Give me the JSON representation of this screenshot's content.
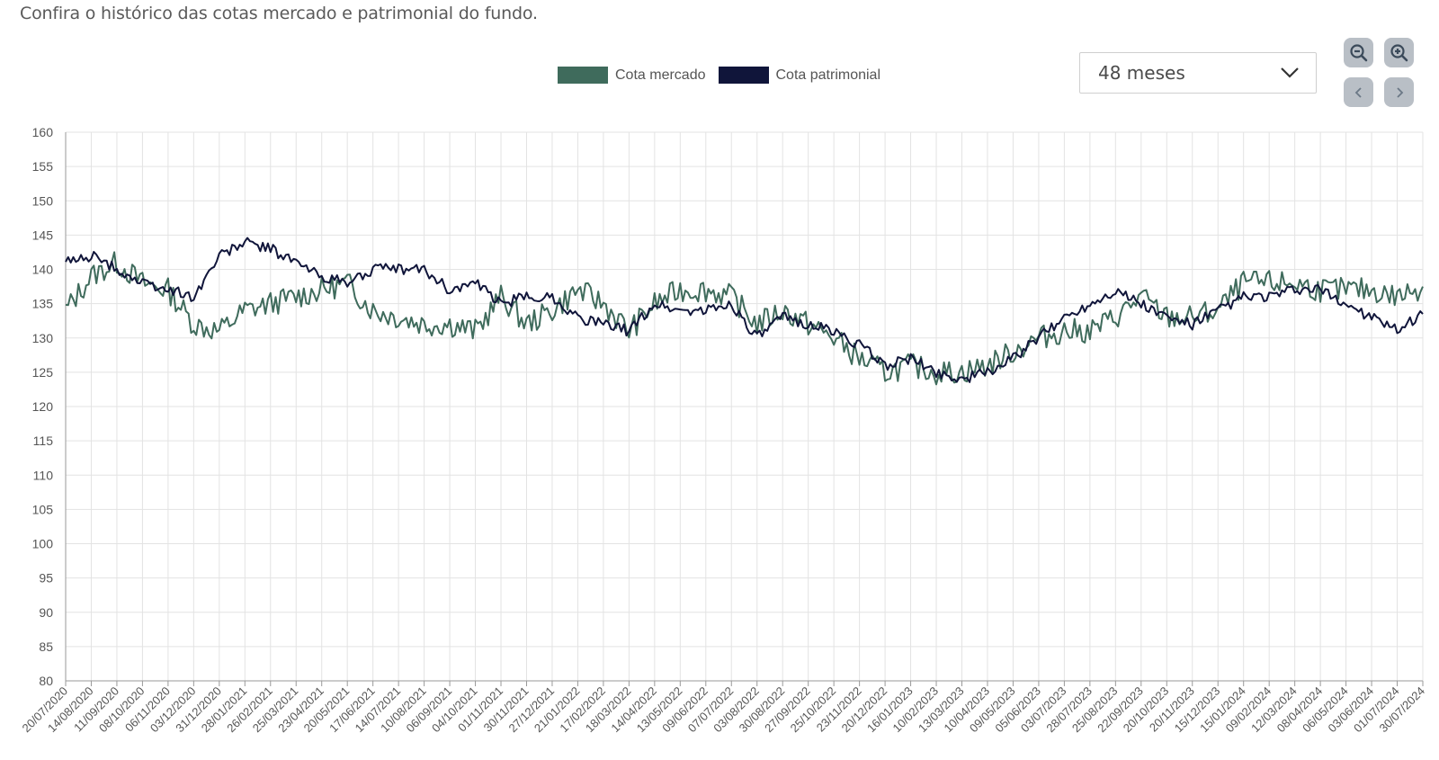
{
  "intro": "Confira o histórico das cotas mercado e patrimonial do fundo.",
  "period_select": {
    "value": "48 meses"
  },
  "controls": {
    "zoom_out_icon": "zoom-out-icon",
    "zoom_in_icon": "zoom-in-icon",
    "prev_icon": "chevron-left-icon",
    "next_icon": "chevron-right-icon"
  },
  "colors": {
    "mercado": "#3f6b5c",
    "patrimonial": "#10153a",
    "grid": "#e3e3e3",
    "button": "#b9bfc6"
  },
  "chart_data": {
    "type": "line",
    "title": "",
    "xlabel": "",
    "ylabel": "",
    "ylim": [
      80,
      160
    ],
    "y_ticks": [
      160,
      155,
      150,
      145,
      140,
      135,
      130,
      125,
      120,
      115,
      110,
      105,
      100,
      95,
      90,
      85,
      80
    ],
    "grid": true,
    "legend_position": "top-center",
    "x": [
      "20/07/2020",
      "14/08/2020",
      "11/09/2020",
      "08/10/2020",
      "06/11/2020",
      "03/12/2020",
      "31/12/2020",
      "28/01/2021",
      "26/02/2021",
      "25/03/2021",
      "23/04/2021",
      "20/05/2021",
      "17/06/2021",
      "14/07/2021",
      "10/08/2021",
      "06/09/2021",
      "04/10/2021",
      "01/11/2021",
      "30/11/2021",
      "27/12/2021",
      "21/01/2022",
      "17/02/2022",
      "18/03/2022",
      "14/04/2022",
      "13/05/2022",
      "09/06/2022",
      "07/07/2022",
      "03/08/2022",
      "30/08/2022",
      "27/09/2022",
      "25/10/2022",
      "23/11/2022",
      "20/12/2022",
      "16/01/2023",
      "10/02/2023",
      "13/03/2023",
      "10/04/2023",
      "09/05/2023",
      "05/06/2023",
      "03/07/2023",
      "28/07/2023",
      "25/08/2023",
      "22/09/2023",
      "20/10/2023",
      "20/11/2023",
      "15/12/2023",
      "15/01/2024",
      "09/02/2024",
      "12/03/2024",
      "08/04/2024",
      "06/05/2024",
      "03/06/2024",
      "01/07/2024",
      "30/07/2024"
    ],
    "series": [
      {
        "name": "Cota mercado",
        "values": [
          134,
          139,
          141,
          138,
          137,
          132,
          131,
          134,
          135,
          136,
          137,
          138,
          134,
          133,
          132,
          132,
          131,
          136,
          132,
          134,
          137,
          135,
          131,
          135,
          137,
          137,
          136,
          132,
          134,
          132,
          130,
          127,
          125,
          126,
          125,
          125,
          126,
          128,
          130,
          131,
          131,
          133,
          136,
          133,
          133,
          134,
          138,
          138,
          138,
          137,
          137,
          137,
          136,
          137.5
        ]
      },
      {
        "name": "Cota patrimonial",
        "values": [
          141,
          142,
          140,
          138,
          137,
          136,
          142,
          144,
          143,
          141,
          139,
          138,
          140,
          140,
          140,
          137,
          138,
          135,
          136,
          136,
          133,
          132,
          131,
          135,
          134,
          134,
          135,
          130,
          133,
          132,
          131,
          129,
          126,
          127,
          125,
          124,
          125,
          127,
          130,
          133,
          135,
          137,
          135,
          133,
          132,
          134,
          136,
          136,
          137,
          137,
          135,
          133,
          131,
          133.5
        ]
      }
    ]
  }
}
